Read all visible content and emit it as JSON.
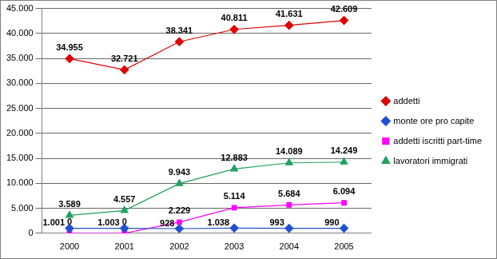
{
  "chart_data": {
    "type": "line",
    "categories": [
      "2000",
      "2001",
      "2002",
      "2003",
      "2004",
      "2005"
    ],
    "series": [
      {
        "name": "addetti",
        "color": "#e00000",
        "marker": "diamond",
        "values": [
          34955,
          32721,
          38341,
          40811,
          41631,
          42609
        ],
        "value_labels": [
          "34.955",
          "32.721",
          "38.341",
          "40.811",
          "41.631",
          "42.609"
        ]
      },
      {
        "name": "monte ore pro capite",
        "color": "#2050d0",
        "marker": "diamond",
        "values": [
          1001,
          1003,
          928,
          1038,
          993,
          990
        ],
        "value_labels": [
          "1.001",
          "1.003",
          "928",
          "1.038",
          "993",
          "990"
        ]
      },
      {
        "name": "addetti iscritti part-time",
        "color": "#ff00ff",
        "marker": "square",
        "values": [
          0,
          0,
          2229,
          5114,
          5684,
          6094
        ],
        "value_labels": [
          "0",
          "0",
          "2.229",
          "5.114",
          "5.684",
          "6.094"
        ]
      },
      {
        "name": "lavoratori immigrati",
        "color": "#20a060",
        "marker": "triangle",
        "values": [
          3589,
          4557,
          9943,
          12883,
          14089,
          14249
        ],
        "value_labels": [
          "3.589",
          "4.557",
          "9.943",
          "12.883",
          "14.089",
          "14.249"
        ]
      }
    ],
    "ylim": [
      0,
      45000
    ],
    "yticks": [
      0,
      {
        "value": 5000,
        "label": "5.000"
      },
      {
        "value": 10000,
        "label": "10.000"
      },
      {
        "value": 15000,
        "label": "15.000"
      },
      {
        "value": 20000,
        "label": "20.000"
      },
      {
        "value": 25000,
        "label": "25.000"
      },
      {
        "value": 30000,
        "label": "30.000"
      },
      {
        "value": 35000,
        "label": "35.000"
      },
      {
        "value": 40000,
        "label": "40.000"
      },
      {
        "value": 45000,
        "label": "45.000"
      }
    ],
    "grid": true,
    "legend": "right",
    "data_labels": true
  }
}
